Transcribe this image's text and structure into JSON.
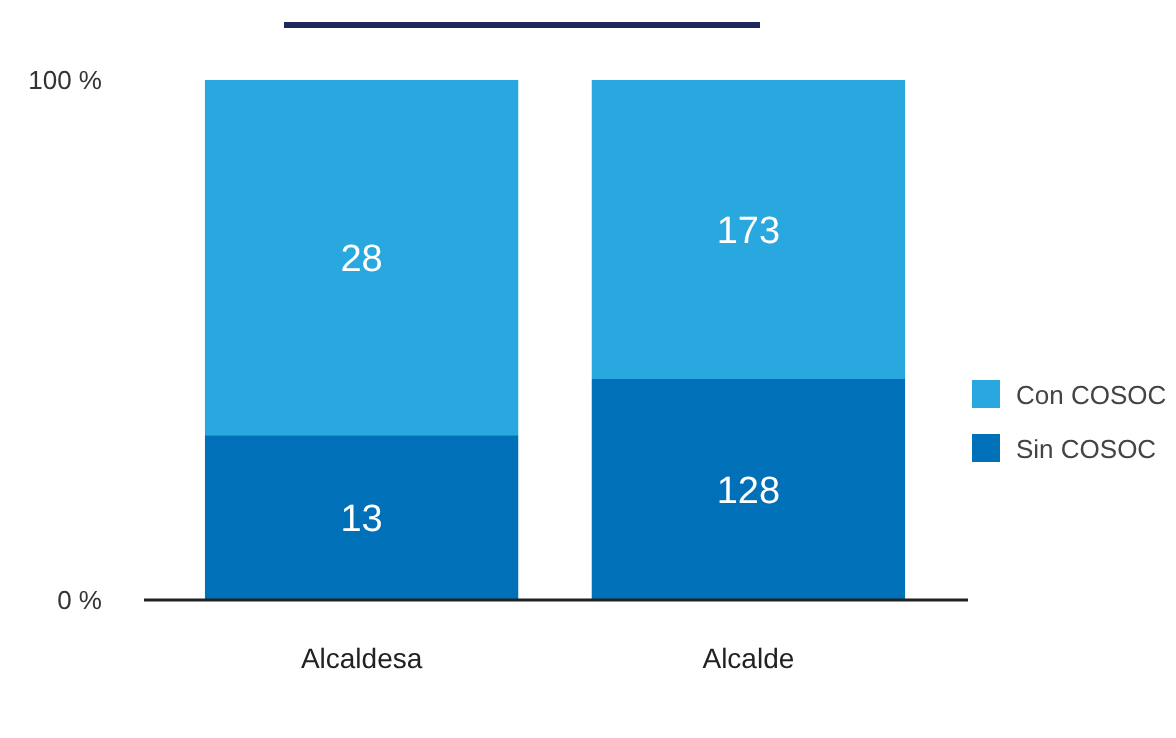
{
  "chart_data": {
    "type": "bar",
    "stacked": true,
    "categories": [
      "Alcaldesa",
      "Alcalde"
    ],
    "series": [
      {
        "name": "Sin COSOC",
        "color": "#0070b8",
        "values": [
          31.7,
          42.5
        ]
      },
      {
        "name": "Con COSOC",
        "color": "#29a8df",
        "values": [
          68.3,
          57.5
        ]
      }
    ],
    "annotations": [
      "13",
      "28",
      "128",
      "173"
    ],
    "ylim": [
      0,
      100
    ],
    "yticks": [
      {
        "value": 0,
        "label": "0 %"
      },
      {
        "value": 100,
        "label": "100 %"
      }
    ],
    "grid": false,
    "legend": "right"
  }
}
